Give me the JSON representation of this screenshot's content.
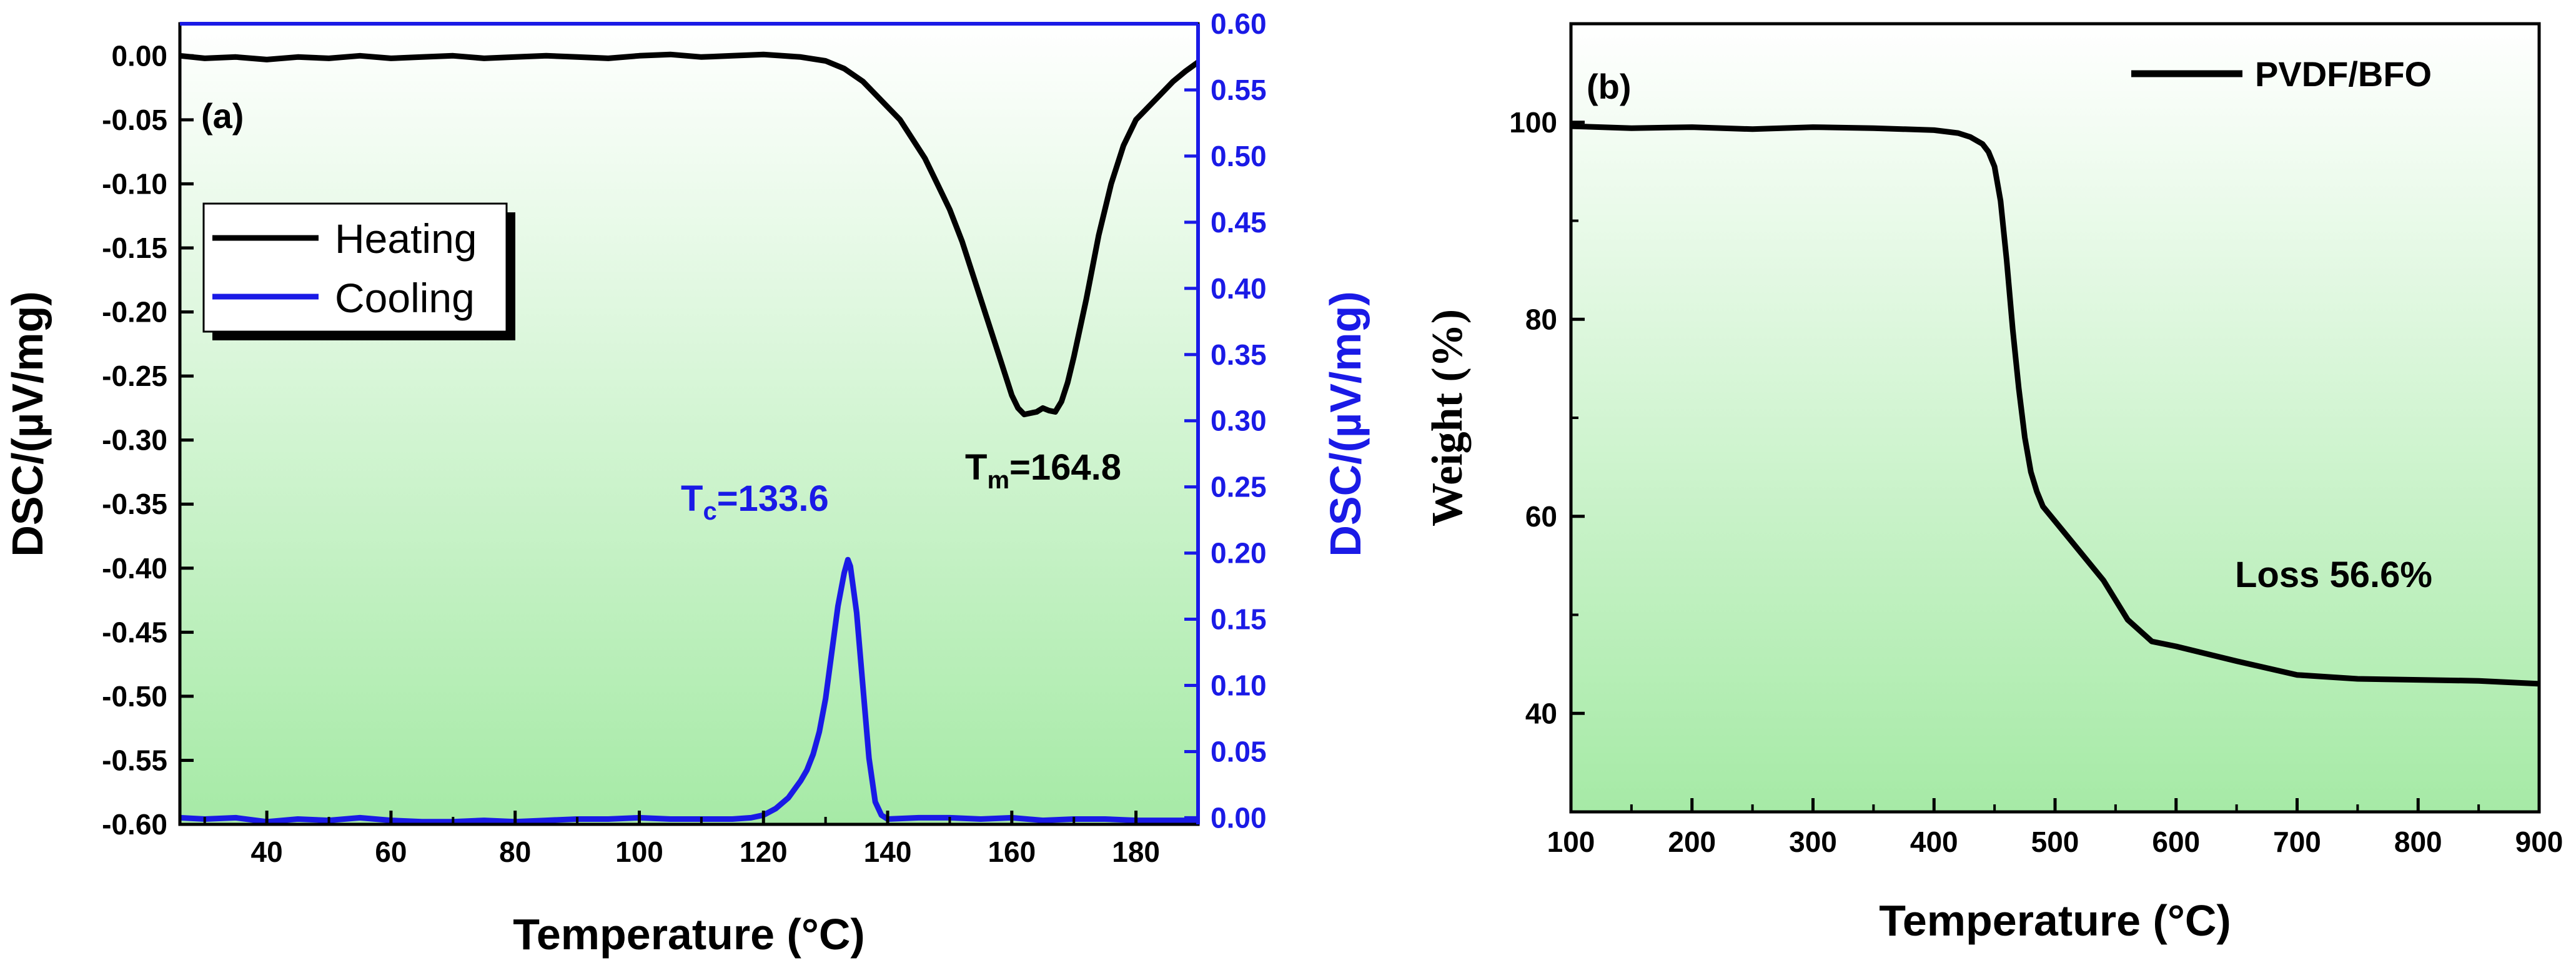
{
  "colors": {
    "heating": "#000000",
    "cooling": "#1a1ae6",
    "bg_top": "#ffffff",
    "bg_bottom": "#a6eaa6",
    "axis_right": "#1a1ae6"
  },
  "chart_data": [
    {
      "type": "line",
      "panel": "(a)",
      "xlabel": "Temperature (°C)",
      "ylabel": "DSC/(µV/mg)",
      "ylabel_right": "DSC/(µV/mg)",
      "xlim": [
        26,
        190
      ],
      "ylim": [
        -0.6,
        0.025
      ],
      "ylim_right": [
        -0.005,
        0.6
      ],
      "x_ticks": [
        "40",
        "60",
        "80",
        "100",
        "120",
        "140",
        "160",
        "180"
      ],
      "y_ticks": [
        "0.00",
        "-0.05",
        "-0.10",
        "-0.15",
        "-0.20",
        "-0.25",
        "-0.30",
        "-0.35",
        "-0.40",
        "-0.45",
        "-0.50",
        "-0.55",
        "-0.60"
      ],
      "y_ticks_right": [
        "0.60",
        "0.55",
        "0.50",
        "0.45",
        "0.40",
        "0.35",
        "0.30",
        "0.25",
        "0.20",
        "0.15",
        "0.10",
        "0.05",
        "0.00"
      ],
      "legend": [
        "Heating",
        "Cooling"
      ],
      "legend_position": "top-left",
      "series": [
        {
          "name": "Heating",
          "axis": "left",
          "x": [
            26,
            30,
            35,
            40,
            45,
            50,
            55,
            60,
            65,
            70,
            75,
            80,
            85,
            90,
            95,
            100,
            105,
            110,
            115,
            120,
            123,
            126,
            130,
            133,
            136,
            138,
            140,
            142,
            144,
            146,
            148,
            150,
            152,
            154,
            156,
            158,
            160,
            161,
            162,
            164,
            165,
            166,
            167,
            168,
            169,
            170,
            172,
            174,
            176,
            178,
            180,
            182,
            184,
            186,
            188,
            190
          ],
          "values": [
            0.0,
            -0.002,
            -0.001,
            -0.003,
            -0.001,
            -0.002,
            0.0,
            -0.002,
            -0.001,
            0.0,
            -0.002,
            -0.001,
            0.0,
            -0.001,
            -0.002,
            0.0,
            0.001,
            -0.001,
            0.0,
            0.001,
            0.0,
            -0.001,
            -0.004,
            -0.01,
            -0.02,
            -0.03,
            -0.04,
            -0.05,
            -0.065,
            -0.08,
            -0.1,
            -0.12,
            -0.145,
            -0.175,
            -0.205,
            -0.235,
            -0.265,
            -0.275,
            -0.28,
            -0.278,
            -0.275,
            -0.277,
            -0.278,
            -0.27,
            -0.255,
            -0.235,
            -0.19,
            -0.14,
            -0.1,
            -0.07,
            -0.05,
            -0.04,
            -0.03,
            -0.02,
            -0.012,
            -0.005
          ]
        },
        {
          "name": "Cooling",
          "axis": "right",
          "x": [
            26,
            30,
            35,
            40,
            45,
            50,
            55,
            60,
            65,
            70,
            75,
            80,
            85,
            90,
            95,
            100,
            105,
            110,
            115,
            118,
            120,
            122,
            124,
            126,
            127,
            128,
            129,
            130,
            131,
            132,
            133,
            133.6,
            134,
            135,
            136,
            137,
            138,
            139,
            140,
            145,
            150,
            155,
            160,
            165,
            170,
            175,
            180,
            185,
            190
          ],
          "values": [
            0.0,
            -0.001,
            0.0,
            -0.003,
            -0.001,
            -0.002,
            0.0,
            -0.002,
            -0.003,
            -0.003,
            -0.002,
            -0.003,
            -0.002,
            -0.001,
            -0.001,
            0.0,
            -0.001,
            -0.001,
            -0.001,
            0.0,
            0.002,
            0.007,
            0.015,
            0.028,
            0.036,
            0.048,
            0.065,
            0.09,
            0.125,
            0.16,
            0.185,
            0.195,
            0.19,
            0.155,
            0.1,
            0.045,
            0.012,
            0.002,
            -0.001,
            0.0,
            0.0,
            -0.001,
            0.0,
            -0.002,
            -0.001,
            -0.001,
            -0.002,
            -0.002,
            -0.002
          ]
        }
      ],
      "annotations": [
        {
          "main": "T",
          "sub": "m",
          "rest": "=164.8",
          "color": "#000000",
          "x": 164.8,
          "y": -0.32
        },
        {
          "main": "T",
          "sub": "c",
          "rest": "=133.6",
          "color": "#1a1ae6",
          "x": 133.6,
          "y": 0.22,
          "axis": "right"
        }
      ]
    },
    {
      "type": "line",
      "panel": "(b)",
      "xlabel": "Temperature (°C)",
      "ylabel": "Weight (%)",
      "xlim": [
        100,
        900
      ],
      "ylim": [
        30,
        110
      ],
      "x_ticks": [
        "100",
        "200",
        "300",
        "400",
        "500",
        "600",
        "700",
        "800",
        "900"
      ],
      "y_ticks": [
        "40",
        "60",
        "80",
        "100"
      ],
      "legend": [
        "PVDF/BFO"
      ],
      "legend_position": "top-right",
      "series": [
        {
          "name": "PVDF/BFO",
          "x": [
            100,
            150,
            200,
            250,
            300,
            350,
            400,
            420,
            430,
            440,
            445,
            450,
            455,
            460,
            465,
            470,
            475,
            480,
            485,
            490,
            500,
            520,
            540,
            560,
            580,
            600,
            650,
            700,
            750,
            800,
            850,
            900
          ],
          "values": [
            99.6,
            99.4,
            99.5,
            99.3,
            99.5,
            99.4,
            99.2,
            98.9,
            98.5,
            97.8,
            97.0,
            95.5,
            92.0,
            86.0,
            79.0,
            73.0,
            68.0,
            64.5,
            62.5,
            61.0,
            59.5,
            56.5,
            53.5,
            49.5,
            47.3,
            46.8,
            45.3,
            43.9,
            43.5,
            43.4,
            43.3,
            43.0
          ]
        }
      ],
      "annotations": [
        {
          "text": "Loss 56.6%",
          "x": 670,
          "y": 54.6
        }
      ]
    }
  ]
}
